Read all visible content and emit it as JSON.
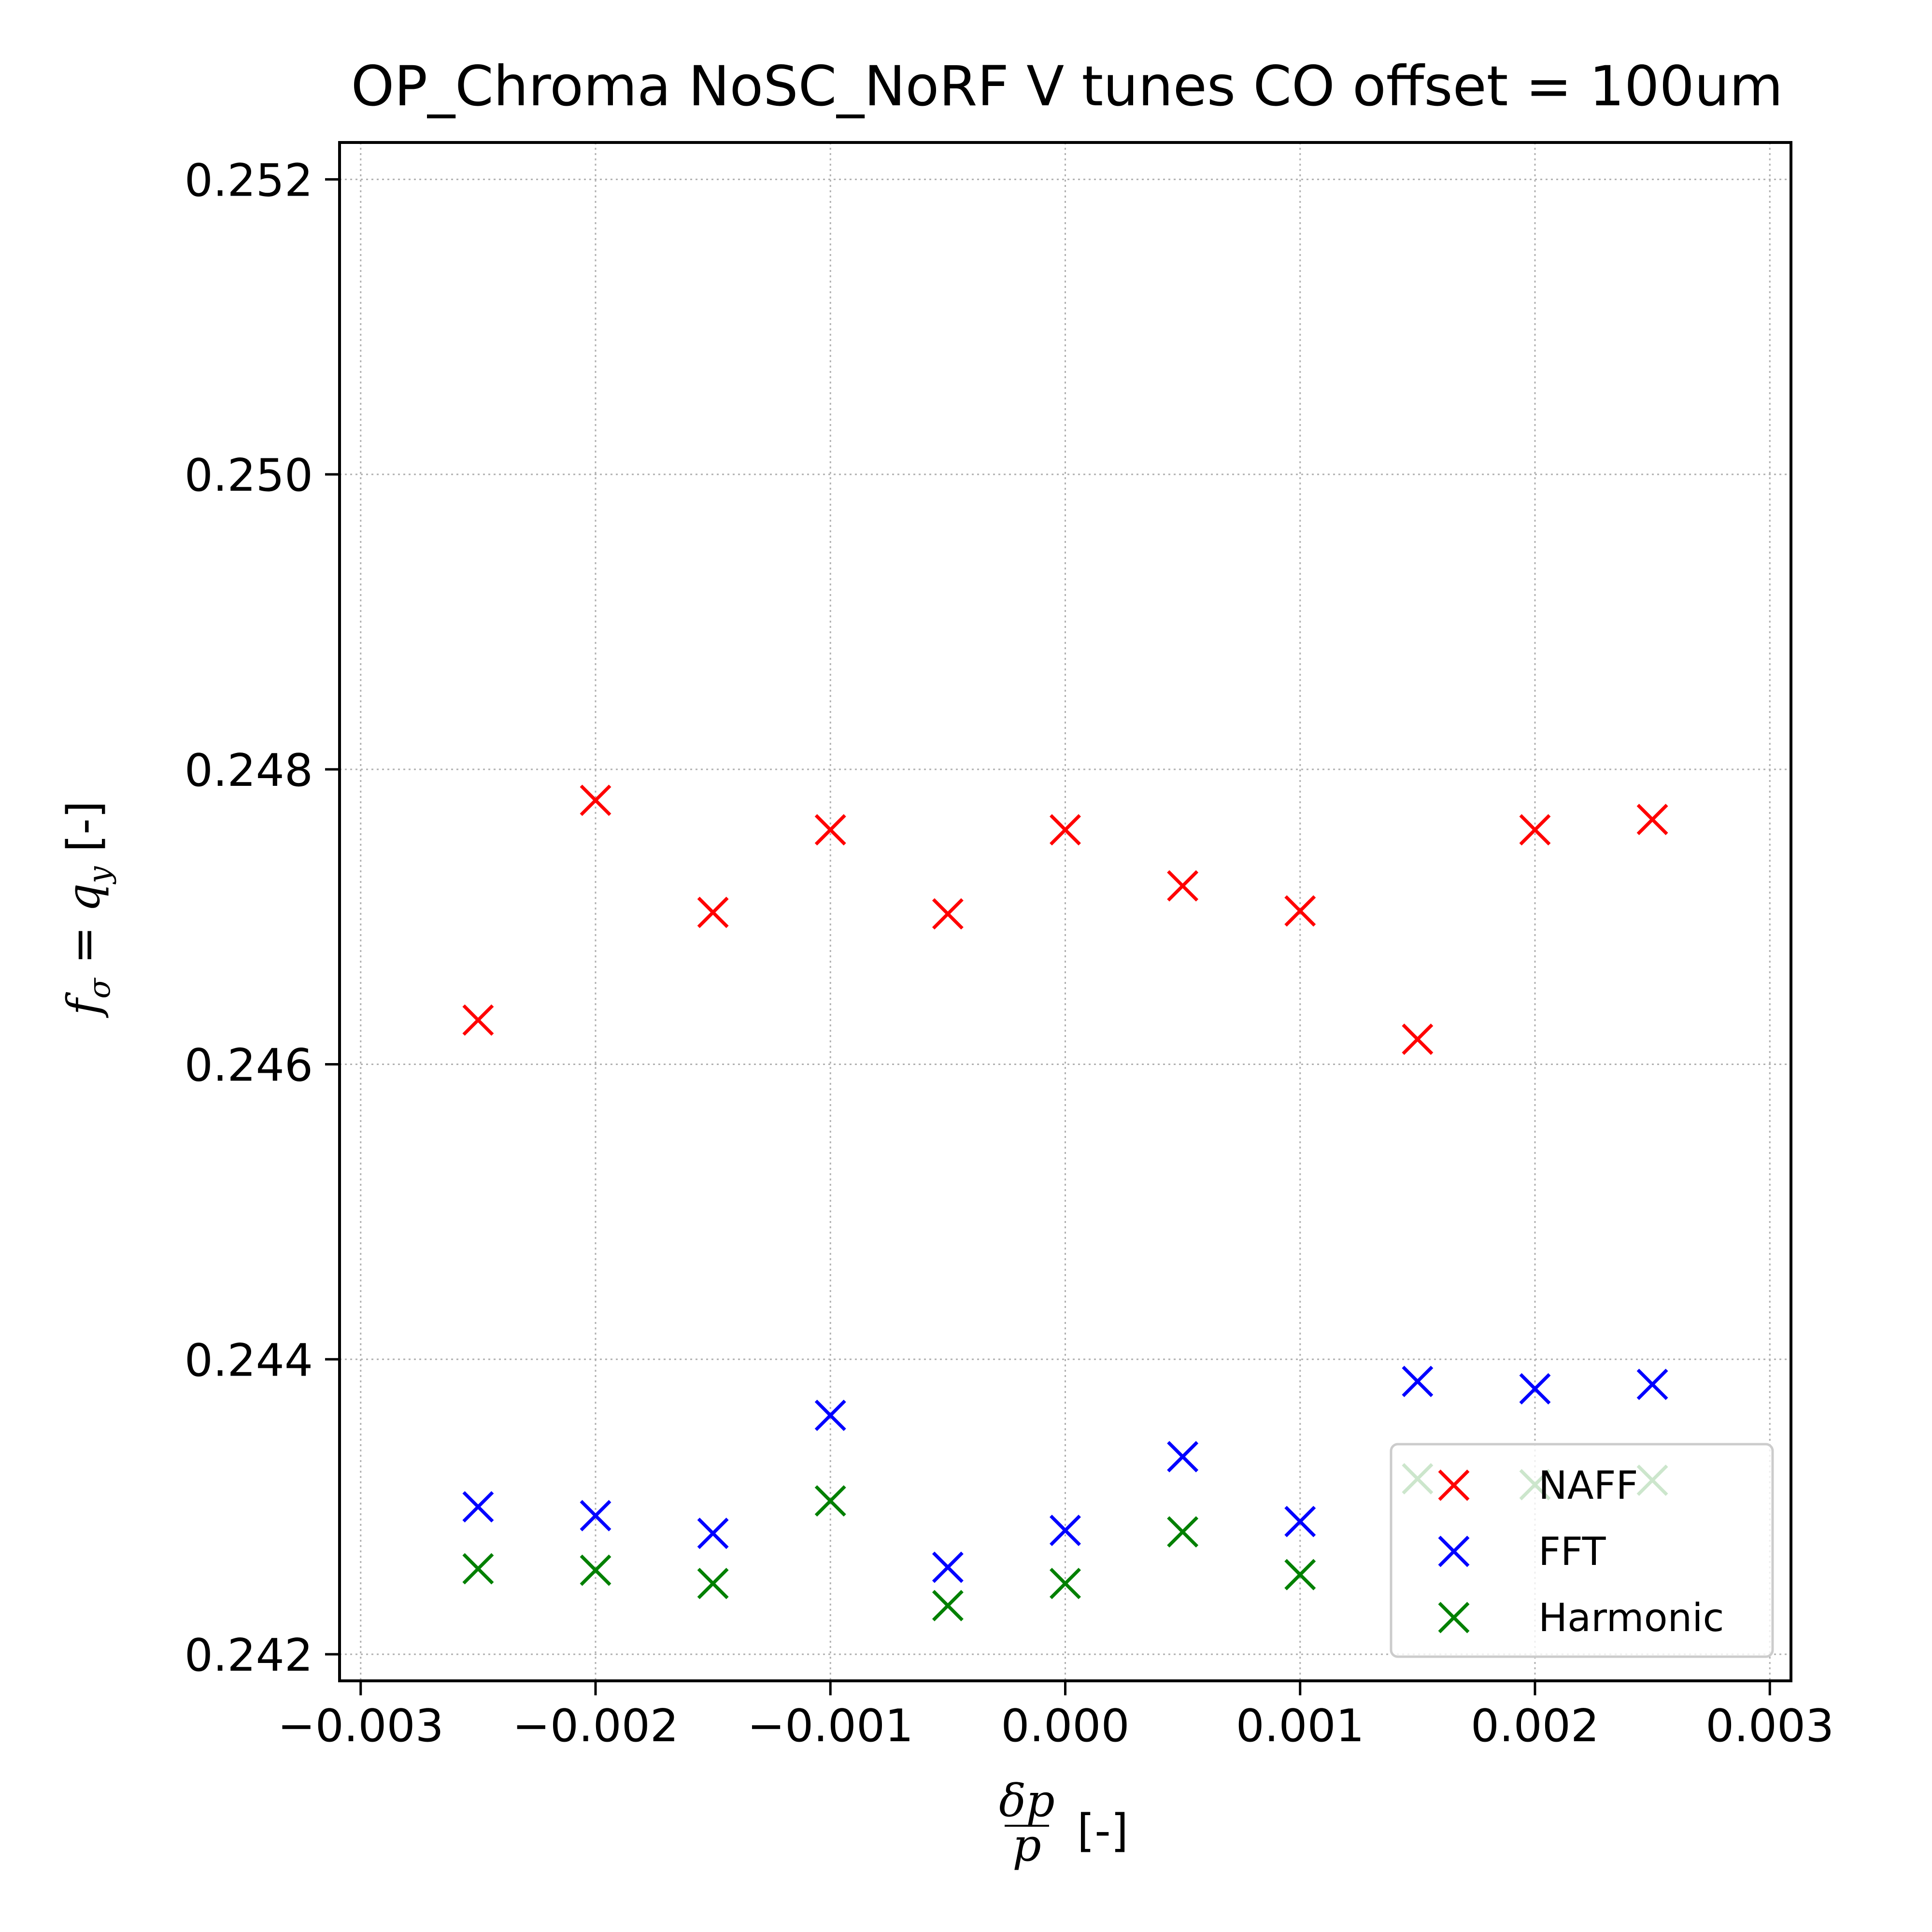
{
  "chart_data": {
    "type": "scatter",
    "title": "OP_Chroma NoSC_NoRF V tunes CO offset = 100um",
    "xlabel": "δp/p [-]",
    "ylabel": "f_σ = q_y [-]",
    "xlim": [
      -0.00309,
      0.00309
    ],
    "ylim": [
      0.24182,
      0.25225
    ],
    "x_ticks": [
      -0.003,
      -0.002,
      -0.001,
      0.0,
      0.001,
      0.002,
      0.003
    ],
    "x_tick_labels": [
      "−0.003",
      "−0.002",
      "−0.001",
      "0.000",
      "0.001",
      "0.002",
      "0.003"
    ],
    "y_ticks": [
      0.242,
      0.244,
      0.246,
      0.248,
      0.25,
      0.252
    ],
    "y_tick_labels": [
      "0.242",
      "0.244",
      "0.246",
      "0.248",
      "0.250",
      "0.252"
    ],
    "grid": true,
    "legend_position": "lower-right",
    "x": [
      -0.0025,
      -0.002,
      -0.0015,
      -0.001,
      -0.0005,
      0.0,
      0.0005,
      0.001,
      0.0015,
      0.002,
      0.0025
    ],
    "series": [
      {
        "name": "NAFF",
        "color": "#ff0000",
        "marker": "x",
        "values": [
          0.2463,
          0.24779,
          0.24703,
          0.24759,
          0.24702,
          0.24759,
          0.24721,
          0.24704,
          0.24617,
          0.24759,
          0.24766
        ]
      },
      {
        "name": "FFT",
        "color": "#0000ff",
        "marker": "x",
        "values": [
          0.243,
          0.24294,
          0.24282,
          0.24362,
          0.24259,
          0.24284,
          0.24334,
          0.2429,
          0.24385,
          0.2438,
          0.24383
        ]
      },
      {
        "name": "Harmonic",
        "color": "#008000",
        "marker": "x",
        "values": [
          0.24258,
          0.24257,
          0.24248,
          0.24304,
          0.24233,
          0.24248,
          0.24283,
          0.24254,
          0.24319,
          0.24315,
          0.24318
        ]
      }
    ]
  }
}
